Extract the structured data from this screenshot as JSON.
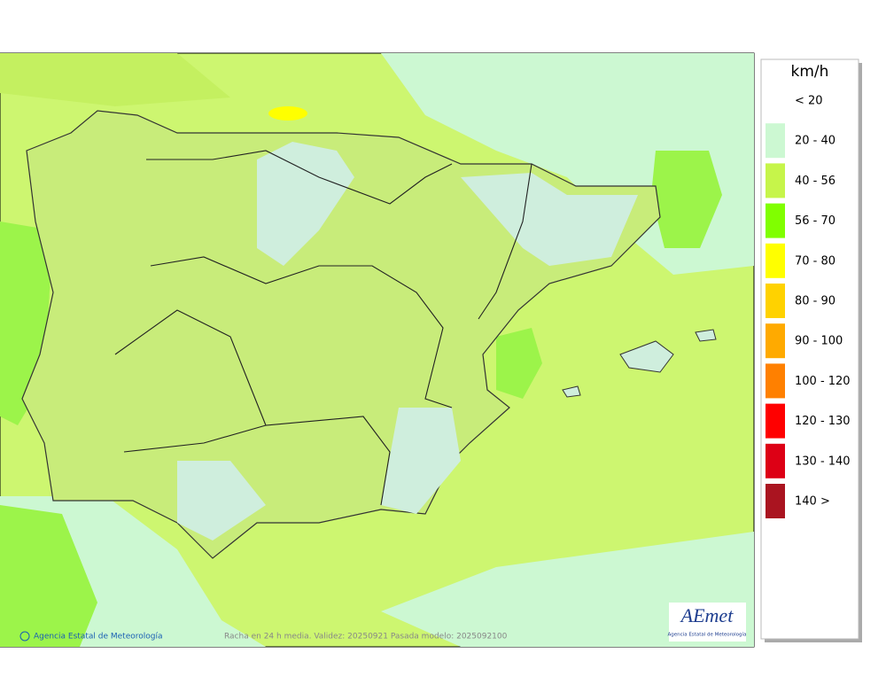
{
  "legend": {
    "title": "km/h",
    "items": [
      {
        "label": "< 20"
      },
      {
        "label": "20 - 40",
        "color": "#ccf8d2"
      },
      {
        "label": "40 - 56",
        "color": "#c6f54a"
      },
      {
        "label": "56 - 70",
        "color": "#80ff00"
      },
      {
        "label": "70 - 80",
        "color": "#ffff00"
      },
      {
        "label": "80 - 90",
        "color": "#ffd200"
      },
      {
        "label": "90 - 100",
        "color": "#ffaa00"
      },
      {
        "label": "100 - 120",
        "color": "#ff8000"
      },
      {
        "label": "120 - 130",
        "color": "#ff0000"
      },
      {
        "label": "130 - 140",
        "color": "#dd0015"
      },
      {
        "label": "140 >",
        "color": "#aa1420"
      }
    ]
  },
  "footer": {
    "credit": "Agencia Estatal de Meteorología",
    "caption": "Racha en 24 h media. Validez: 20250921 Pasada modelo: 2025092100"
  },
  "logo": {
    "text": "AEmet",
    "subtitle": "Agencia Estatal de Meteorología"
  }
}
